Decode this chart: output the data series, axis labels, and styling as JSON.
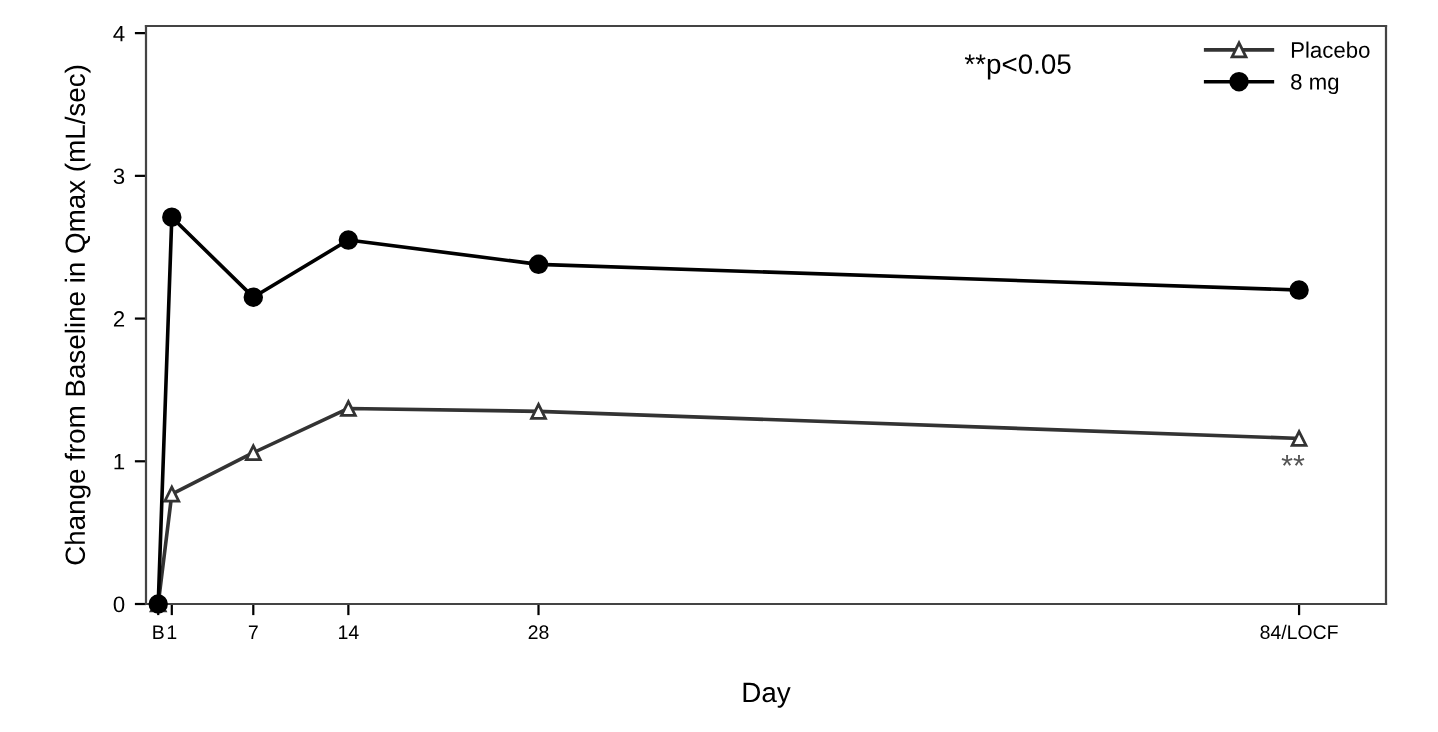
{
  "chart_data": {
    "type": "line",
    "xlabel": "Day",
    "ylabel": "Change from Baseline in Qmax (mL/sec)",
    "x": [
      0,
      1,
      7,
      14,
      28,
      84
    ],
    "series": [
      {
        "name": "Placebo",
        "color": "#333333",
        "marker": "triangle",
        "values": [
          0,
          0.77,
          1.06,
          1.37,
          1.35,
          1.16
        ]
      },
      {
        "name": "8 mg",
        "color": "#000000",
        "marker": "circle",
        "values": [
          0,
          2.71,
          2.15,
          2.55,
          2.38,
          2.2
        ]
      }
    ],
    "xlim": [
      -0.9,
      90.4
    ],
    "xticks": [
      {
        "value": 0,
        "label": "B"
      },
      1,
      7,
      14,
      28,
      {
        "value": 84,
        "label": "84/LOCF"
      }
    ],
    "ylim": [
      0,
      4.05
    ],
    "yticks": [
      0,
      1,
      2,
      3,
      4
    ],
    "annotations": [
      "**p<0.05",
      "**"
    ],
    "legend": "top right",
    "grid": false,
    "line_style": "solid"
  }
}
